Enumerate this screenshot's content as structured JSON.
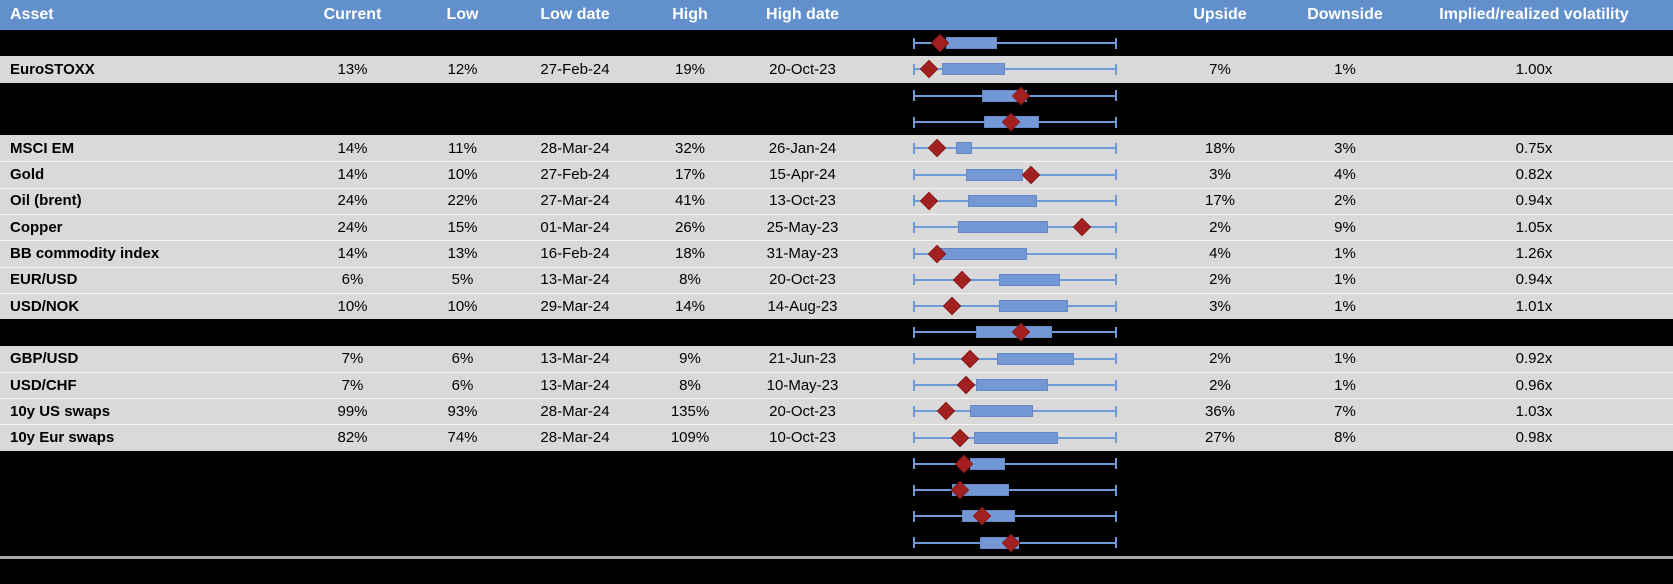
{
  "header": {
    "columns": {
      "asset": "Asset",
      "current": "Current",
      "low": "Low",
      "low_date": "Low date",
      "high": "High",
      "high_date": "High date",
      "upside": "Upside",
      "downside": "Downside",
      "implied": "Implied/realized volatility"
    }
  },
  "colors": {
    "header_bg": "#6290CD",
    "header_text": "#FFFFFF",
    "row_bg": "#D9D9D9",
    "spacer_bg": "#000000",
    "whisker_blue": "#6F9ADA",
    "box_blue": "#7398D5",
    "diamond_red": "#A32020",
    "separator_gray": "#A9A9A9"
  },
  "boxplot_axis": {
    "min": 0,
    "max": 100
  },
  "rows": [
    {
      "kind": "spacer",
      "plot": {
        "box_start": 16,
        "box_end": 41,
        "marker": 13
      }
    },
    {
      "kind": "data",
      "asset": "EuroSTOXX",
      "current": "13%",
      "low": "12%",
      "low_date": "27-Feb-24",
      "high": "19%",
      "high_date": "20-Oct-23",
      "upside": "7%",
      "downside": "1%",
      "implied": "1.00x",
      "plot": {
        "box_start": 14,
        "box_end": 45,
        "marker": 8
      }
    },
    {
      "kind": "spacer",
      "plot": {
        "box_start": 34,
        "box_end": 56,
        "marker": 53
      }
    },
    {
      "kind": "spacer",
      "plot": {
        "box_start": 35,
        "box_end": 62,
        "marker": 48
      }
    },
    {
      "kind": "data",
      "asset": "MSCI EM",
      "current": "14%",
      "low": "11%",
      "low_date": "28-Mar-24",
      "high": "32%",
      "high_date": "26-Jan-24",
      "upside": "18%",
      "downside": "3%",
      "implied": "0.75x",
      "plot": {
        "box_start": 21,
        "box_end": 29,
        "marker": 12
      }
    },
    {
      "kind": "data",
      "asset": "Gold",
      "current": "14%",
      "low": "10%",
      "low_date": "27-Feb-24",
      "high": "17%",
      "high_date": "15-Apr-24",
      "upside": "3%",
      "downside": "4%",
      "implied": "0.82x",
      "plot": {
        "box_start": 26,
        "box_end": 54,
        "marker": 58
      }
    },
    {
      "kind": "data",
      "asset": "Oil (brent)",
      "current": "24%",
      "low": "22%",
      "low_date": "27-Mar-24",
      "high": "41%",
      "high_date": "13-Oct-23",
      "upside": "17%",
      "downside": "2%",
      "implied": "0.94x",
      "plot": {
        "box_start": 27,
        "box_end": 61,
        "marker": 8
      }
    },
    {
      "kind": "data",
      "asset": "Copper",
      "current": "24%",
      "low": "15%",
      "low_date": "01-Mar-24",
      "high": "26%",
      "high_date": "25-May-23",
      "upside": "2%",
      "downside": "9%",
      "implied": "1.05x",
      "plot": {
        "box_start": 22,
        "box_end": 66,
        "marker": 83
      }
    },
    {
      "kind": "data",
      "asset": "BB commodity index",
      "current": "14%",
      "low": "13%",
      "low_date": "16-Feb-24",
      "high": "18%",
      "high_date": "31-May-23",
      "upside": "4%",
      "downside": "1%",
      "implied": "1.26x",
      "plot": {
        "box_start": 13,
        "box_end": 56,
        "marker": 12
      }
    },
    {
      "kind": "data",
      "asset": "EUR/USD",
      "current": "6%",
      "low": "5%",
      "low_date": "13-Mar-24",
      "high": "8%",
      "high_date": "20-Oct-23",
      "upside": "2%",
      "downside": "1%",
      "implied": "0.94x",
      "plot": {
        "box_start": 42,
        "box_end": 72,
        "marker": 24
      }
    },
    {
      "kind": "data",
      "asset": "USD/NOK",
      "current": "10%",
      "low": "10%",
      "low_date": "29-Mar-24",
      "high": "14%",
      "high_date": "14-Aug-23",
      "upside": "3%",
      "downside": "1%",
      "implied": "1.01x",
      "plot": {
        "box_start": 42,
        "box_end": 76,
        "marker": 19
      }
    },
    {
      "kind": "spacer",
      "plot": {
        "box_start": 31,
        "box_end": 68,
        "marker": 53
      }
    },
    {
      "kind": "data",
      "asset": "GBP/USD",
      "current": "7%",
      "low": "6%",
      "low_date": "13-Mar-24",
      "high": "9%",
      "high_date": "21-Jun-23",
      "upside": "2%",
      "downside": "1%",
      "implied": "0.92x",
      "plot": {
        "box_start": 41,
        "box_end": 79,
        "marker": 28
      }
    },
    {
      "kind": "data",
      "asset": "USD/CHF",
      "current": "7%",
      "low": "6%",
      "low_date": "13-Mar-24",
      "high": "8%",
      "high_date": "10-May-23",
      "upside": "2%",
      "downside": "1%",
      "implied": "0.96x",
      "plot": {
        "box_start": 31,
        "box_end": 66,
        "marker": 26
      }
    },
    {
      "kind": "data",
      "asset": "10y US swaps",
      "current": "99%",
      "low": "93%",
      "low_date": "28-Mar-24",
      "high": "135%",
      "high_date": "20-Oct-23",
      "upside": "36%",
      "downside": "7%",
      "implied": "1.03x",
      "plot": {
        "box_start": 28,
        "box_end": 59,
        "marker": 16
      }
    },
    {
      "kind": "data",
      "asset": "10y Eur swaps",
      "current": "82%",
      "low": "74%",
      "low_date": "28-Mar-24",
      "high": "109%",
      "high_date": "10-Oct-23",
      "upside": "27%",
      "downside": "8%",
      "implied": "0.98x",
      "plot": {
        "box_start": 30,
        "box_end": 71,
        "marker": 23
      }
    },
    {
      "kind": "spacer",
      "plot": {
        "box_start": 28,
        "box_end": 45,
        "marker": 25
      }
    },
    {
      "kind": "spacer",
      "plot": {
        "box_start": 19,
        "box_end": 47,
        "marker": 23
      }
    },
    {
      "kind": "spacer",
      "plot": {
        "box_start": 24,
        "box_end": 50,
        "marker": 34
      }
    },
    {
      "kind": "spacer",
      "plot": {
        "box_start": 33,
        "box_end": 52,
        "marker": 48
      }
    }
  ]
}
